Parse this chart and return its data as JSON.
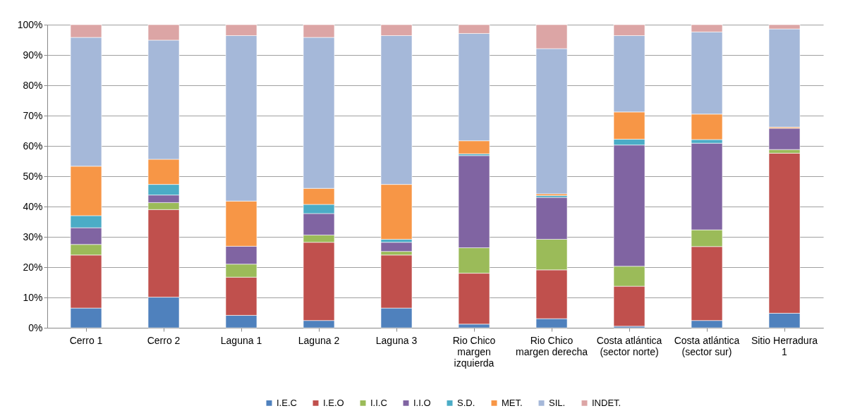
{
  "chart_data": {
    "type": "bar",
    "stacked": true,
    "categories": [
      "Cerro 1",
      "Cerro 2",
      "Laguna 1",
      "Laguna 2",
      "Laguna 3",
      "Rio Chico margen izquierda",
      "Rio Chico margen derecha",
      "Costa atlántica (sector norte)",
      "Costa atlántica (sector sur)",
      "Sitio Herradura 1"
    ],
    "series": [
      {
        "name": "I.E.C",
        "color": "#4f81bd",
        "values": [
          6.5,
          10.1,
          4.1,
          2.4,
          6.5,
          1.2,
          3,
          0.5,
          2.4,
          4.8
        ]
      },
      {
        "name": "I.E.O",
        "color": "#c0504d",
        "values": [
          17.5,
          28.9,
          12.6,
          25.8,
          17.5,
          16.8,
          16.1,
          13.2,
          24.4,
          52.8
        ]
      },
      {
        "name": "I.I.C",
        "color": "#9bbb59",
        "values": [
          3.5,
          2.3,
          4.3,
          2.4,
          1.2,
          8.4,
          10.1,
          6.6,
          5.5,
          1.2
        ]
      },
      {
        "name": "I.I.O",
        "color": "#8064a2",
        "values": [
          5.5,
          2.5,
          5.9,
          7.1,
          3,
          30.4,
          13.8,
          40,
          28.6,
          7
        ]
      },
      {
        "name": "S.D.",
        "color": "#4bacc6",
        "values": [
          4,
          3.5,
          null,
          3,
          1,
          0.6,
          0.6,
          1.9,
          1.2,
          null
        ]
      },
      {
        "name": "MET.",
        "color": "#f79646",
        "values": [
          16.3,
          8.3,
          14.9,
          5.3,
          18.1,
          4.3,
          0.6,
          9,
          8.4,
          0.4
        ]
      },
      {
        "name": "SIL.",
        "color": "#a5b8d9",
        "values": [
          42.5,
          39.3,
          54.6,
          49.8,
          49.1,
          35.4,
          47.9,
          25.2,
          27.1,
          32.4
        ]
      },
      {
        "name": "INDET.",
        "color": "#dca5a5",
        "values": [
          4.2,
          5.1,
          3.6,
          4.2,
          3.6,
          2.9,
          7.9,
          3.6,
          2.4,
          1.4
        ]
      }
    ],
    "ylim": [
      0,
      100
    ],
    "yticks": [
      {
        "value": 0,
        "label": "0%"
      },
      {
        "value": 10,
        "label": "10%"
      },
      {
        "value": 20,
        "label": "20%"
      },
      {
        "value": 30,
        "label": "30%"
      },
      {
        "value": 40,
        "label": "40%"
      },
      {
        "value": 50,
        "label": "50%"
      },
      {
        "value": 60,
        "label": "60%"
      },
      {
        "value": 70,
        "label": "70%"
      },
      {
        "value": 80,
        "label": "80%"
      },
      {
        "value": 90,
        "label": "90%"
      },
      {
        "value": 100,
        "label": "100%"
      }
    ],
    "grid": "y",
    "legend": "bottom"
  }
}
